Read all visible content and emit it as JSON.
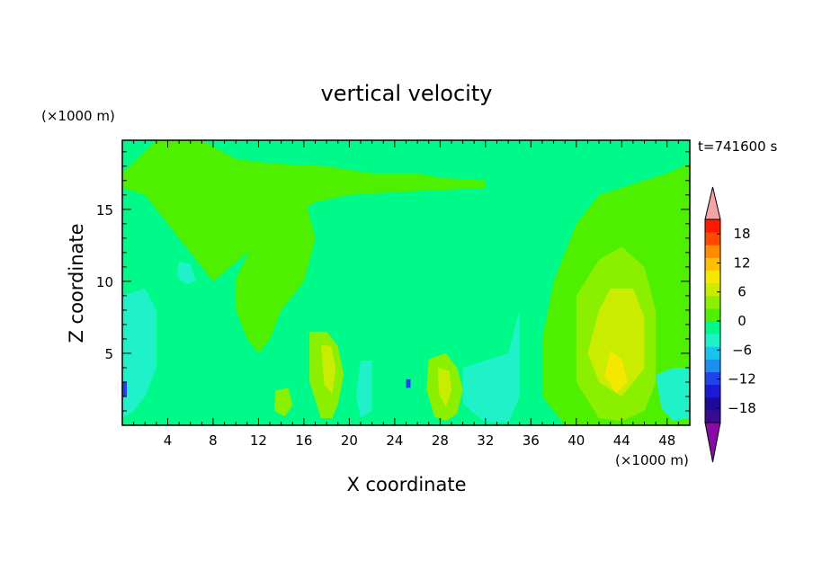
{
  "chart_data": {
    "type": "contour",
    "title": "vertical velocity",
    "xlabel": "X coordinate",
    "ylabel": "Z coordinate",
    "x_unit": "(×1000 m)",
    "y_unit": "(×1000 m)",
    "time_label": "t=741600 s",
    "xlim": [
      0,
      50
    ],
    "ylim": [
      0,
      19.8
    ],
    "xticks": [
      4,
      8,
      12,
      16,
      20,
      24,
      28,
      32,
      36,
      40,
      44,
      48
    ],
    "yticks": [
      5,
      10,
      15
    ],
    "colorbar": {
      "min": -21,
      "max": 21,
      "step": 3,
      "tick_labels": [
        "18",
        "12",
        "6",
        "0",
        "−6",
        "−12",
        "−18"
      ],
      "tick_values": [
        18,
        12,
        6,
        0,
        -6,
        -12,
        -18
      ],
      "colors": [
        "#3a0a8f",
        "#1c0a9c",
        "#1a1ad6",
        "#1f45e8",
        "#1a8ff0",
        "#19c3ef",
        "#1ff2c8",
        "#00fa8a",
        "#4ef000",
        "#8af000",
        "#c9ec00",
        "#f4e800",
        "#ffc000",
        "#ff8c00",
        "#ff4b00",
        "#ff1a00"
      ],
      "under_color": "#8a0aa8",
      "over_color": "#f4a4a4"
    },
    "regions": [
      {
        "level": 0,
        "color": "#4ef000",
        "x": [
          0,
          3,
          7,
          10,
          13,
          18,
          22,
          26,
          28,
          32,
          32,
          24,
          20,
          17,
          14,
          11,
          8,
          5,
          2,
          0
        ],
        "z": [
          17.5,
          19.8,
          19.8,
          18.5,
          18.2,
          18,
          17.5,
          17.5,
          17.2,
          17,
          16.5,
          16.2,
          16,
          15.5,
          14,
          12,
          10,
          13,
          16,
          16.5
        ]
      },
      {
        "level": 0,
        "color": "#4ef000",
        "x": [
          10,
          13,
          16,
          17,
          16,
          14,
          13,
          12,
          11,
          10
        ],
        "z": [
          10.2,
          15,
          16,
          13,
          10,
          8,
          6,
          5,
          6,
          8
        ]
      },
      {
        "level": 0,
        "color": "#4ef000",
        "x": [
          38,
          40,
          42,
          44,
          46,
          48,
          50,
          50,
          48,
          46,
          44,
          42,
          39,
          37,
          37
        ],
        "z": [
          10,
          14,
          16,
          16.5,
          17,
          17.5,
          18.2,
          0,
          0,
          0,
          0,
          0,
          0,
          2,
          6
        ]
      },
      {
        "level": 3,
        "color": "#8af000",
        "x": [
          40,
          42,
          44,
          46,
          47,
          47,
          46,
          44,
          42,
          40
        ],
        "z": [
          9,
          11.5,
          12.4,
          11,
          8,
          3,
          1,
          0.3,
          0.5,
          3
        ]
      },
      {
        "level": 6,
        "color": "#c9ec00",
        "x": [
          42,
          43,
          45,
          46,
          46,
          44,
          42,
          41
        ],
        "z": [
          8,
          9.5,
          9.5,
          7.5,
          4,
          2,
          3,
          5
        ]
      },
      {
        "level": 9,
        "color": "#f4e800",
        "x": [
          43,
          44,
          44.5,
          43.5,
          42.5
        ],
        "z": [
          5.2,
          4.6,
          3,
          2.2,
          3.5
        ]
      },
      {
        "level": 3,
        "color": "#8af000",
        "x": [
          16.5,
          18,
          19,
          19.5,
          19,
          18.5,
          17.5,
          16.5
        ],
        "z": [
          6.5,
          6.5,
          5.5,
          3.5,
          1.5,
          0.5,
          0.5,
          3
        ]
      },
      {
        "level": 6,
        "color": "#c9ec00",
        "x": [
          17.5,
          18.4,
          18.8,
          18.5,
          17.8
        ],
        "z": [
          5.6,
          5.5,
          4,
          2.2,
          2.8
        ]
      },
      {
        "level": 3,
        "color": "#8af000",
        "x": [
          27,
          28.5,
          29.5,
          30,
          29.5,
          28.5,
          27.5,
          26.8
        ],
        "z": [
          4.6,
          5,
          4,
          2.5,
          0.8,
          0.3,
          0.6,
          2.5
        ]
      },
      {
        "level": 6,
        "color": "#c9ec00",
        "x": [
          27.8,
          28.8,
          29,
          28.5,
          27.9
        ],
        "z": [
          4,
          3.8,
          2.4,
          1.3,
          2.2
        ]
      },
      {
        "level": 3,
        "color": "#8af000",
        "x": [
          13.5,
          14.6,
          15,
          14.3,
          13.4
        ],
        "z": [
          2.4,
          2.6,
          1.4,
          0.6,
          1
        ]
      },
      {
        "level": -3,
        "color": "#1ff2c8",
        "x": [
          0,
          2,
          3,
          3,
          2,
          1,
          0
        ],
        "z": [
          9,
          9.5,
          8,
          4,
          2,
          1,
          0.5
        ]
      },
      {
        "level": -3,
        "color": "#1ff2c8",
        "x": [
          30,
          32,
          34,
          35,
          35,
          34,
          32,
          30
        ],
        "z": [
          4,
          4.5,
          5,
          8,
          2,
          0.2,
          0.2,
          1.5
        ]
      },
      {
        "level": -3,
        "color": "#1ff2c8",
        "x": [
          47,
          48.5,
          50,
          50,
          48.5,
          47.5
        ],
        "z": [
          3.5,
          4,
          4,
          0.5,
          0.3,
          1.2
        ]
      },
      {
        "level": -3,
        "color": "#1ff2c8",
        "x": [
          5,
          6,
          6.5,
          5.5,
          4.8
        ],
        "z": [
          11.4,
          11.2,
          10,
          9.8,
          10.4
        ]
      },
      {
        "level": -3,
        "color": "#1ff2c8",
        "x": [
          21,
          22,
          22,
          21,
          20.6
        ],
        "z": [
          4.5,
          4.5,
          1,
          0.5,
          2
        ]
      },
      {
        "level": -9,
        "color": "#1f45e8",
        "x": [
          0,
          0.4,
          0.4,
          0
        ],
        "z": [
          3,
          3,
          2,
          2
        ]
      },
      {
        "level": -9,
        "color": "#1f45e8",
        "x": [
          25,
          25.4,
          25.4,
          25
        ],
        "z": [
          3.2,
          3.2,
          2.6,
          2.6
        ]
      }
    ]
  }
}
